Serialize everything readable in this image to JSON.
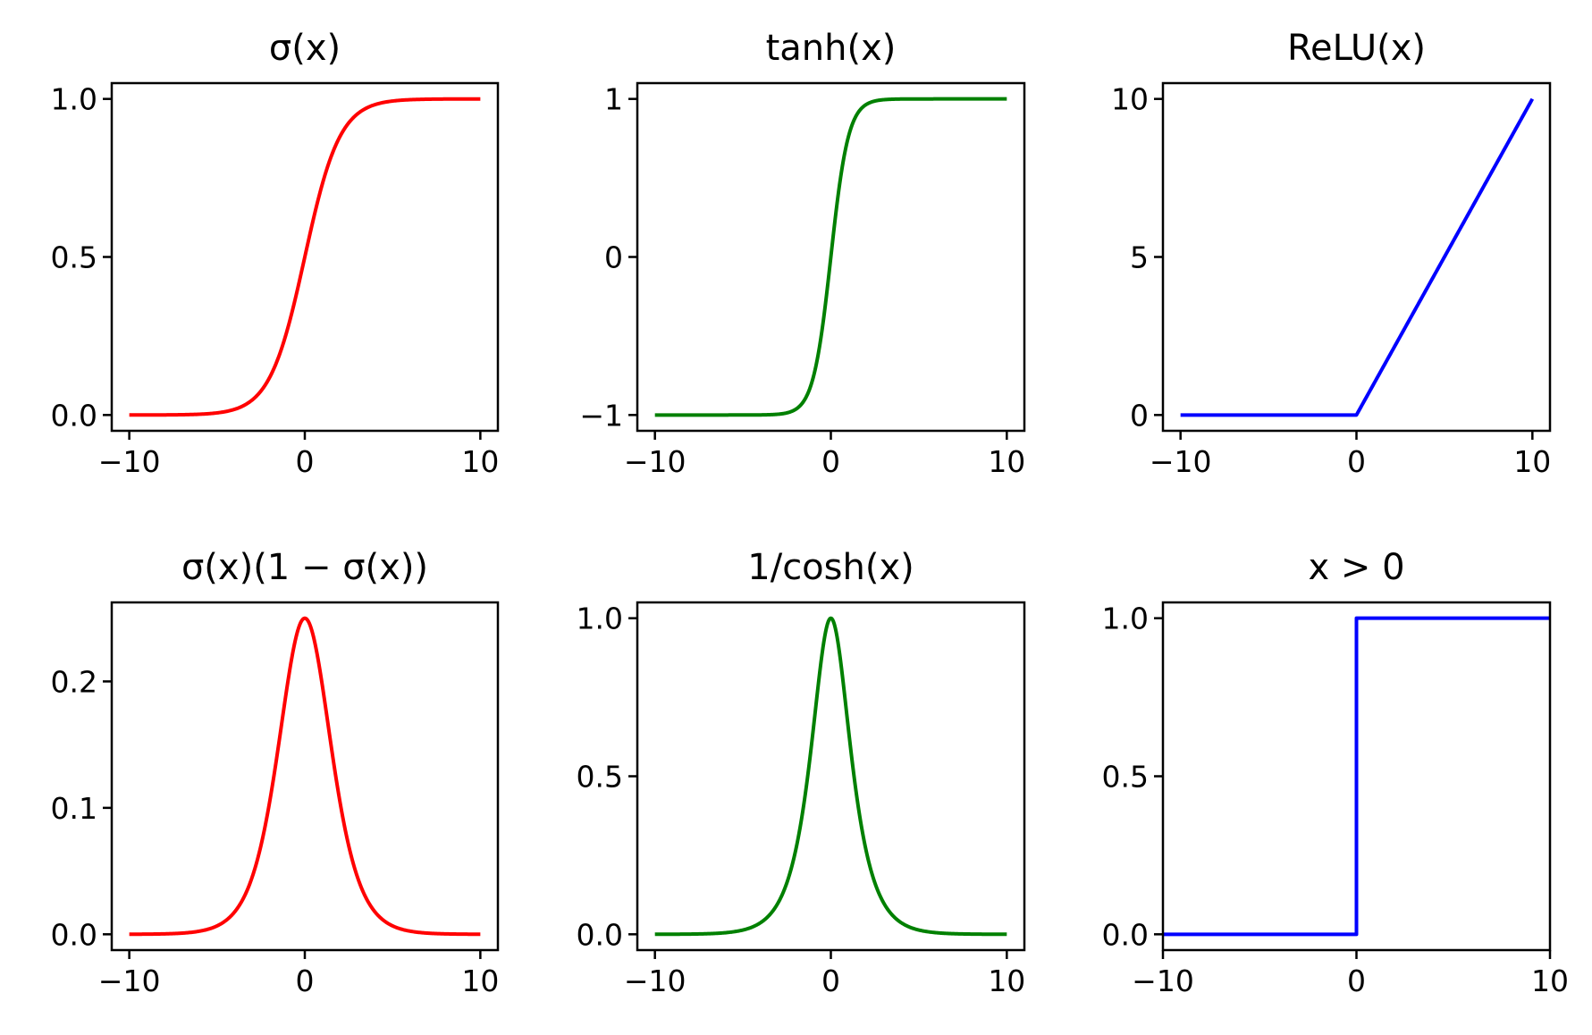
{
  "chart_data": [
    {
      "type": "line",
      "title": "σ(x)",
      "function": "sigmoid",
      "xlim": [
        -11,
        11
      ],
      "ylim": [
        -0.05,
        1.05
      ],
      "xticks": [
        -10,
        0,
        10
      ],
      "xtick_labels": [
        "−10",
        "0",
        "10"
      ],
      "yticks": [
        0.0,
        0.5,
        1.0
      ],
      "ytick_labels": [
        "0.0",
        "0.5",
        "1.0"
      ],
      "series": [
        {
          "color": "#ff0000",
          "x": [
            -10,
            -6,
            -4,
            -2,
            -1,
            0,
            1,
            2,
            4,
            6,
            10
          ],
          "y": [
            0.0,
            0.0025,
            0.018,
            0.119,
            0.269,
            0.5,
            0.731,
            0.881,
            0.982,
            0.9975,
            1.0
          ]
        }
      ]
    },
    {
      "type": "line",
      "title": "tanh(x)",
      "function": "tanh",
      "xlim": [
        -11,
        11
      ],
      "ylim": [
        -1.1,
        1.1
      ],
      "xticks": [
        -10,
        0,
        10
      ],
      "xtick_labels": [
        "−10",
        "0",
        "10"
      ],
      "yticks": [
        -1,
        0,
        1
      ],
      "ytick_labels": [
        "−1",
        "0",
        "1"
      ],
      "series": [
        {
          "color": "#008000",
          "x": [
            -10,
            -4,
            -2,
            -1,
            0,
            1,
            2,
            4,
            10
          ],
          "y": [
            -1.0,
            -0.999,
            -0.964,
            -0.762,
            0.0,
            0.762,
            0.964,
            0.999,
            1.0
          ]
        }
      ]
    },
    {
      "type": "line",
      "title": "ReLU(x)",
      "function": "relu",
      "xlim": [
        -11,
        11
      ],
      "ylim": [
        -0.5,
        10.5
      ],
      "xticks": [
        -10,
        0,
        10
      ],
      "xtick_labels": [
        "−10",
        "0",
        "10"
      ],
      "yticks": [
        0,
        5,
        10
      ],
      "ytick_labels": [
        "0",
        "5",
        "10"
      ],
      "series": [
        {
          "color": "#0000ff",
          "x": [
            -10,
            0,
            10
          ],
          "y": [
            0,
            0,
            10
          ]
        }
      ]
    },
    {
      "type": "line",
      "title": "σ(x)(1 − σ(x))",
      "function": "sigmoid_derivative",
      "xlim": [
        -11,
        11
      ],
      "ylim": [
        -0.0125,
        0.2625
      ],
      "xticks": [
        -10,
        0,
        10
      ],
      "xtick_labels": [
        "−10",
        "0",
        "10"
      ],
      "yticks": [
        0.0,
        0.1,
        0.2
      ],
      "ytick_labels": [
        "0.0",
        "0.1",
        "0.2"
      ],
      "series": [
        {
          "color": "#ff0000",
          "x": [
            -10,
            -4,
            -2,
            -1,
            0,
            1,
            2,
            4,
            10
          ],
          "y": [
            0.0,
            0.018,
            0.105,
            0.197,
            0.25,
            0.197,
            0.105,
            0.018,
            0.0
          ]
        }
      ]
    },
    {
      "type": "line",
      "title": "1/cosh(x)",
      "function": "sech",
      "xlim": [
        -11,
        11
      ],
      "ylim": [
        -0.05,
        1.05
      ],
      "xticks": [
        -10,
        0,
        10
      ],
      "xtick_labels": [
        "−10",
        "0",
        "10"
      ],
      "yticks": [
        0.0,
        0.5,
        1.0
      ],
      "ytick_labels": [
        "0.0",
        "0.5",
        "1.0"
      ],
      "series": [
        {
          "color": "#008000",
          "x": [
            -10,
            -4,
            -2,
            -1,
            0,
            1,
            2,
            4,
            10
          ],
          "y": [
            0.0,
            0.037,
            0.266,
            0.648,
            1.0,
            0.648,
            0.266,
            0.037,
            0.0
          ]
        }
      ]
    },
    {
      "type": "line",
      "title": "x > 0",
      "function": "step",
      "xlim": [
        -10,
        10
      ],
      "ylim": [
        -0.05,
        1.05
      ],
      "xticks": [
        -10,
        0,
        10
      ],
      "xtick_labels": [
        "−10",
        "0",
        "10"
      ],
      "yticks": [
        0.0,
        0.5,
        1.0
      ],
      "ytick_labels": [
        "0.0",
        "0.5",
        "1.0"
      ],
      "series": [
        {
          "color": "#0000ff",
          "x": [
            -10,
            0,
            0,
            10
          ],
          "y": [
            0,
            0,
            1,
            1
          ]
        }
      ]
    }
  ]
}
